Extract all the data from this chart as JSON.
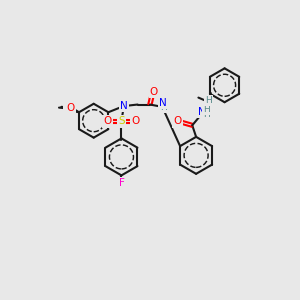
{
  "background_color": "#e8e8e8",
  "bond_color": "#1a1a1a",
  "colors": {
    "N": "#0000ff",
    "O": "#ff0000",
    "S": "#cccc00",
    "F": "#ff00cc",
    "H": "#558888",
    "C": "#1a1a1a"
  },
  "lw": 1.5,
  "lw_aromatic": 1.0
}
